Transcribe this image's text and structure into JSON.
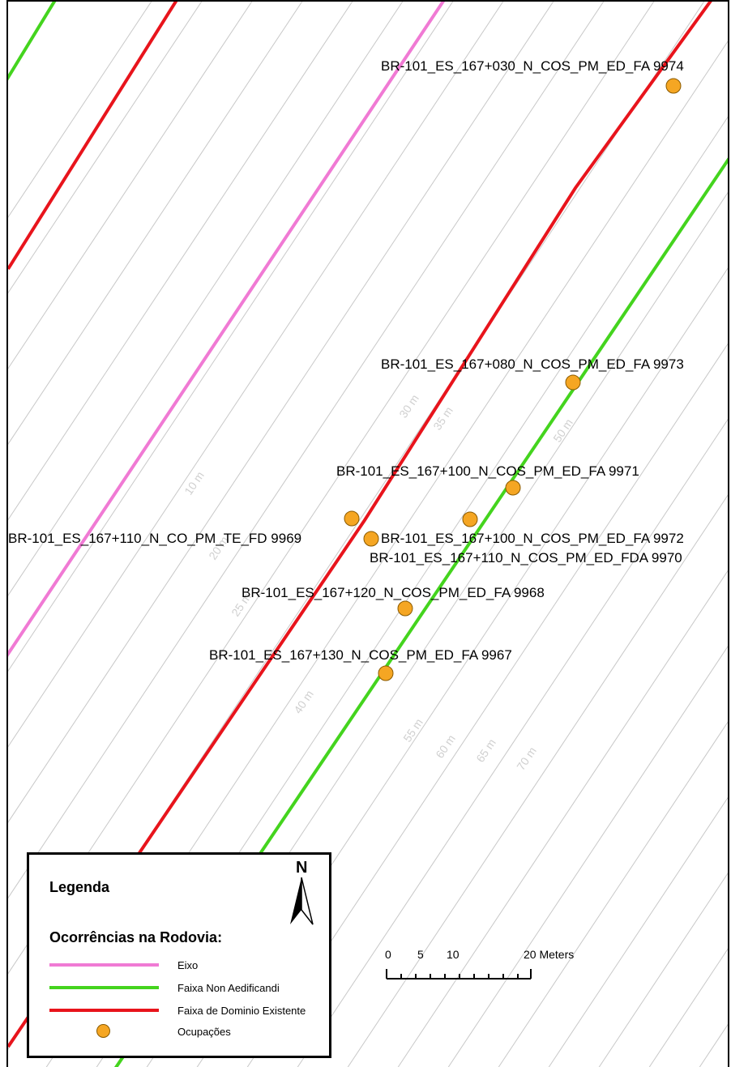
{
  "map": {
    "occurrences": [
      {
        "id": "BR-101_ES_167+030_N_COS_PM_ED_FA 9974"
      },
      {
        "id": "BR-101_ES_167+080_N_COS_PM_ED_FA 9973"
      },
      {
        "id": "BR-101_ES_167+100_N_COS_PM_ED_FA 9971"
      },
      {
        "id": "BR-101_ES_167+110_N_CO_PM_TE_FD 9969"
      },
      {
        "id": "BR-101_ES_167+100_N_COS_PM_ED_FA 9972"
      },
      {
        "id": "BR-101_ES_167+110_N_COS_PM_ED_FDA 9970"
      },
      {
        "id": "BR-101_ES_167+120_N_COS_PM_ED_FA 9968"
      },
      {
        "id": "BR-101_ES_167+130_N_COS_PM_ED_FA 9967"
      }
    ],
    "buffer_labels": [
      "10 m",
      "20 m",
      "25 m",
      "30 m",
      "35 m",
      "40 m",
      "50 m",
      "55 m",
      "60 m",
      "65 m",
      "70 m"
    ],
    "colors": {
      "eixo": "#f07ad4",
      "faixa_non_aedificandi": "#44d41e",
      "faixa_dominio": "#e8141c",
      "ocupacoes": "#f5a623",
      "buffer_lines": "#c8c8c8"
    }
  },
  "legend": {
    "title": "Legenda",
    "subtitle": "Ocorrências na Rodovia:",
    "items": [
      {
        "label": "Eixo",
        "type": "line",
        "color": "#f07ad4"
      },
      {
        "label": "Faixa Non Aedificandi",
        "type": "line",
        "color": "#44d41e"
      },
      {
        "label": "Faixa de Dominio Existente",
        "type": "line",
        "color": "#e8141c"
      },
      {
        "label": "Ocupações",
        "type": "point",
        "color": "#f5a623"
      }
    ],
    "north_label": "N"
  },
  "scale_bar": {
    "tick_labels": [
      "0",
      "5",
      "10",
      "20 Meters"
    ]
  }
}
